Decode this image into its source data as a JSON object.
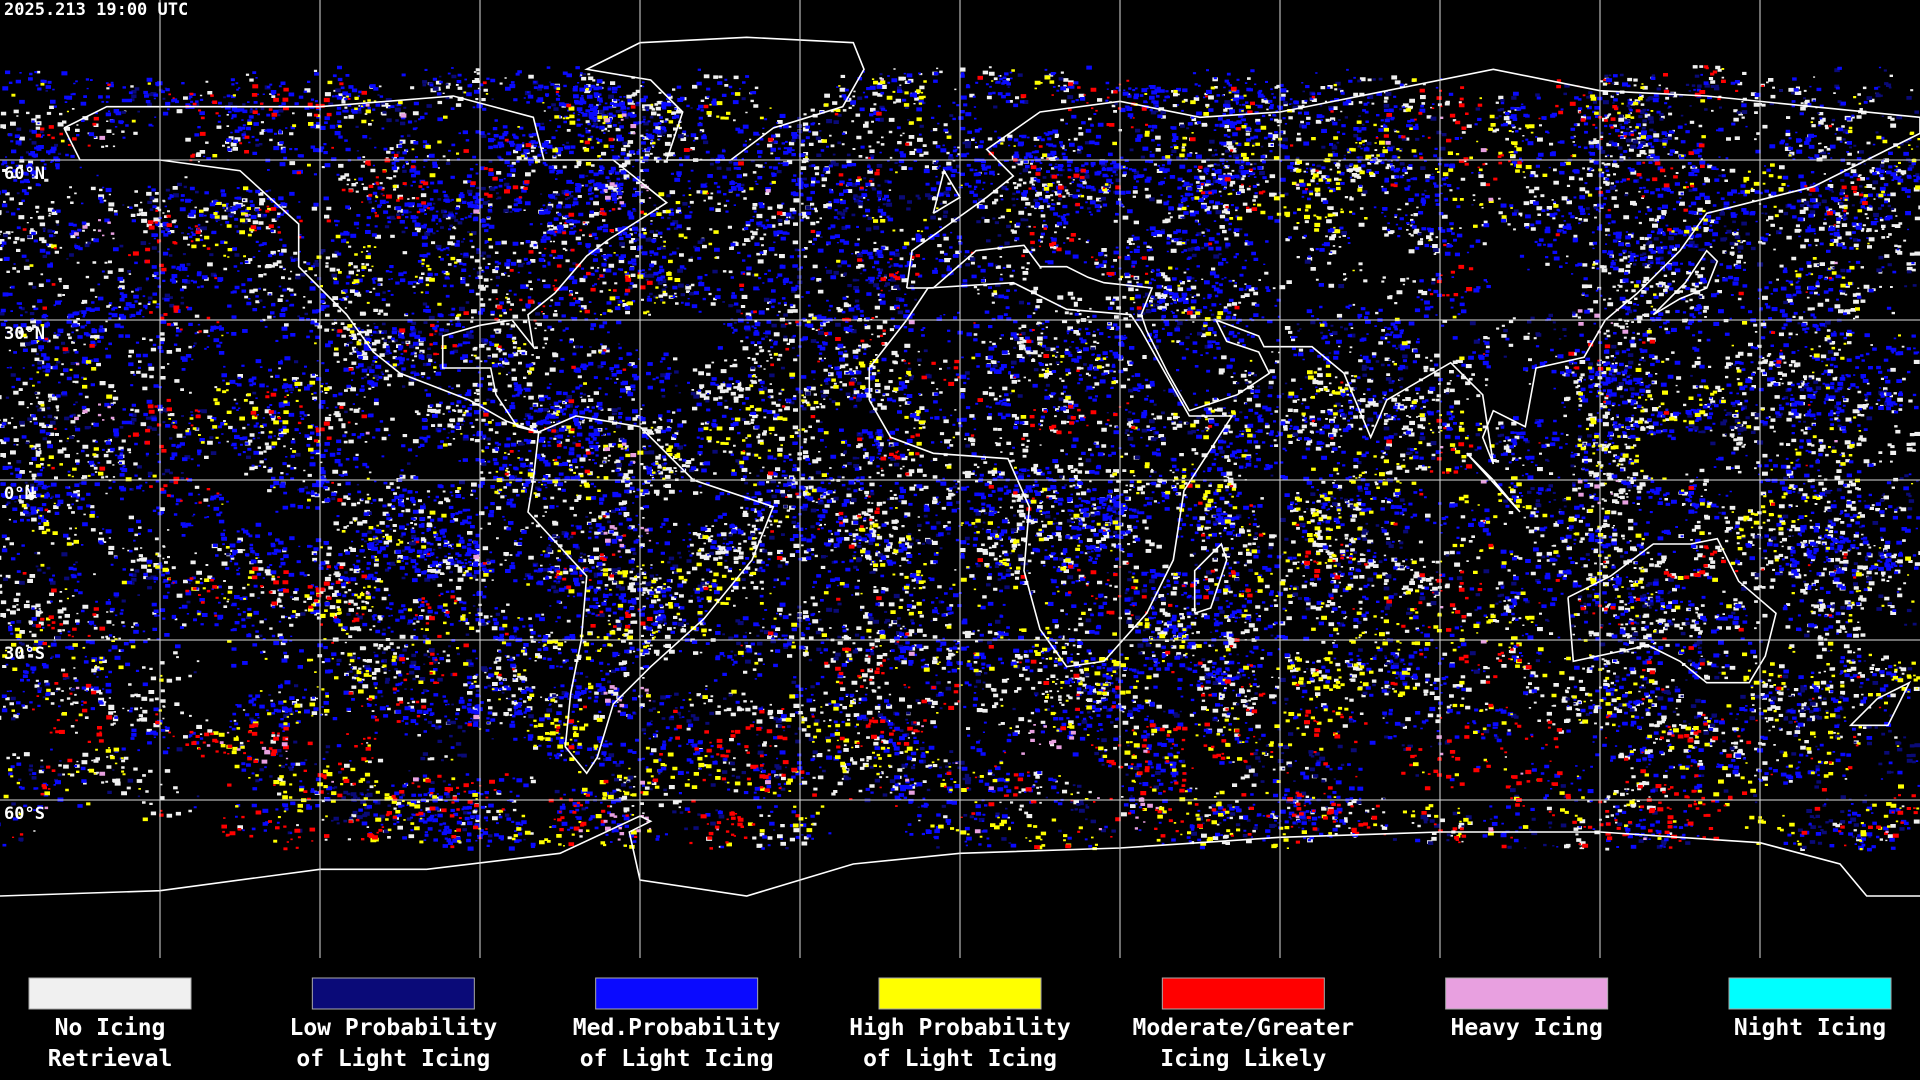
{
  "timestamp": "2025.213 19:00 UTC",
  "latitude_labels": [
    "60°N",
    "30°N",
    "0°N",
    "30°S",
    "60°S"
  ],
  "legend": [
    {
      "label": [
        "No Icing",
        "Retrieval"
      ],
      "color": "#f0f0f0"
    },
    {
      "label": [
        "Low Probability",
        "of Light Icing"
      ],
      "color": "#0a0a78"
    },
    {
      "label": [
        "Med.Probability",
        "of Light Icing"
      ],
      "color": "#0a0aff"
    },
    {
      "label": [
        "High Probability",
        "of Light Icing"
      ],
      "color": "#ffff00"
    },
    {
      "label": [
        "Moderate/Greater",
        "Icing Likely"
      ],
      "color": "#ff0000"
    },
    {
      "label": [
        "Heavy Icing"
      ],
      "color": "#e8a0e0"
    },
    {
      "label": [
        "Night Icing"
      ],
      "color": "#00ffff"
    }
  ]
}
